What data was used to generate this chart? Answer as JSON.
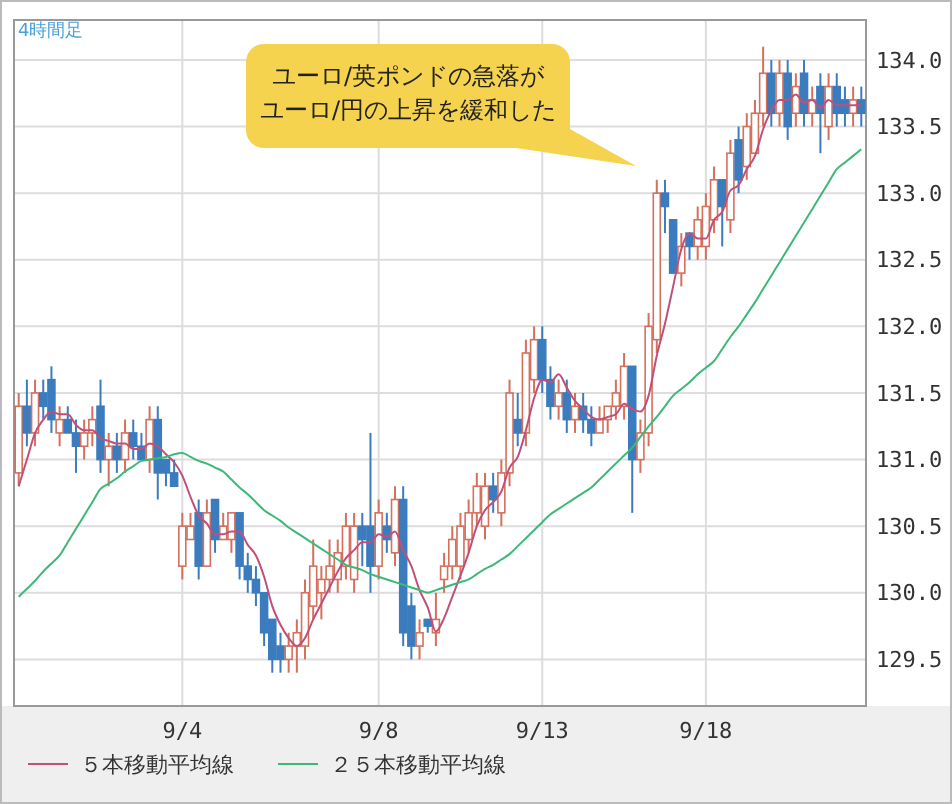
{
  "chart_data": {
    "type": "candlestick",
    "title": "4時間足",
    "categories": [
      null,
      null,
      null,
      null,
      null,
      null,
      null,
      null,
      null,
      null,
      null,
      null,
      null,
      null,
      null,
      null,
      null,
      null,
      null,
      null,
      "9/4",
      null,
      null,
      null,
      null,
      null,
      null,
      null,
      null,
      null,
      null,
      null,
      null,
      null,
      null,
      null,
      null,
      null,
      null,
      null,
      null,
      null,
      null,
      null,
      "9/8",
      null,
      null,
      null,
      null,
      null,
      null,
      null,
      null,
      null,
      null,
      null,
      null,
      null,
      null,
      null,
      null,
      null,
      null,
      null,
      "9/13",
      null,
      null,
      null,
      null,
      null,
      null,
      null,
      null,
      null,
      null,
      null,
      null,
      null,
      null,
      null,
      null,
      null,
      null,
      null,
      "9/18",
      null,
      null,
      null,
      null,
      null,
      null,
      null,
      null,
      null,
      null,
      null,
      null,
      null,
      null,
      null,
      null,
      null,
      null,
      null
    ],
    "series": [
      {
        "ohlc": [
          [
            130.9,
            131.5,
            130.8,
            131.4
          ],
          [
            131.4,
            131.6,
            131.1,
            131.2
          ],
          [
            131.2,
            131.6,
            131.1,
            131.5
          ],
          [
            131.5,
            131.6,
            131.3,
            131.4
          ],
          [
            131.6,
            131.7,
            131.2,
            131.3
          ],
          [
            131.2,
            131.4,
            131.1,
            131.3
          ],
          [
            131.3,
            131.4,
            131.2,
            131.2
          ],
          [
            131.2,
            131.3,
            130.9,
            131.1
          ],
          [
            131.1,
            131.3,
            131.0,
            131.2
          ],
          [
            131.2,
            131.4,
            131.1,
            131.3
          ],
          [
            131.4,
            131.6,
            130.9,
            131.0
          ],
          [
            131.0,
            131.2,
            130.8,
            131.1
          ],
          [
            131.1,
            131.2,
            130.9,
            131.0
          ],
          [
            131.0,
            131.3,
            130.9,
            131.2
          ],
          [
            131.2,
            131.3,
            131.0,
            131.1
          ],
          [
            131.1,
            131.2,
            131.0,
            131.0
          ],
          [
            131.0,
            131.4,
            130.9,
            131.3
          ],
          [
            131.3,
            131.4,
            130.7,
            130.9
          ],
          [
            131.0,
            131.0,
            130.8,
            130.9
          ],
          [
            130.9,
            131.0,
            130.8,
            130.8
          ],
          [
            130.2,
            130.6,
            130.1,
            130.5
          ],
          [
            130.4,
            130.6,
            130.4,
            130.5
          ],
          [
            130.6,
            130.7,
            130.1,
            130.2
          ],
          [
            130.2,
            130.7,
            130.2,
            130.6
          ],
          [
            130.7,
            130.7,
            130.3,
            130.4
          ],
          [
            130.4,
            130.6,
            130.4,
            130.5
          ],
          [
            130.4,
            130.6,
            130.3,
            130.6
          ],
          [
            130.6,
            130.6,
            130.1,
            130.2
          ],
          [
            130.2,
            130.3,
            130.0,
            130.1
          ],
          [
            130.1,
            130.2,
            129.9,
            130.0
          ],
          [
            130.0,
            130.0,
            129.6,
            129.7
          ],
          [
            129.8,
            129.8,
            129.4,
            129.5
          ],
          [
            129.6,
            129.7,
            129.4,
            129.5
          ],
          [
            129.5,
            129.7,
            129.4,
            129.6
          ],
          [
            129.6,
            129.8,
            129.4,
            129.7
          ],
          [
            129.6,
            130.1,
            129.5,
            130.0
          ],
          [
            129.9,
            130.4,
            129.8,
            130.2
          ],
          [
            130.0,
            130.2,
            129.8,
            130.1
          ],
          [
            130.1,
            130.4,
            130.0,
            130.2
          ],
          [
            130.1,
            130.4,
            130.0,
            130.3
          ],
          [
            130.2,
            130.6,
            130.1,
            130.5
          ],
          [
            130.1,
            130.6,
            130.0,
            130.5
          ],
          [
            130.5,
            130.6,
            130.2,
            130.4
          ],
          [
            130.5,
            131.2,
            130.0,
            130.2
          ],
          [
            130.2,
            130.7,
            130.1,
            130.6
          ],
          [
            130.5,
            130.6,
            130.3,
            130.4
          ],
          [
            130.3,
            130.8,
            130.2,
            130.7
          ],
          [
            130.7,
            130.8,
            129.6,
            129.7
          ],
          [
            129.9,
            130.0,
            129.5,
            129.6
          ],
          [
            129.6,
            129.8,
            129.5,
            129.7
          ],
          [
            129.8,
            129.8,
            129.7,
            129.75
          ],
          [
            129.7,
            130.0,
            129.6,
            129.8
          ],
          [
            130.1,
            130.3,
            130.0,
            130.2
          ],
          [
            130.2,
            130.5,
            130.1,
            130.4
          ],
          [
            130.2,
            130.6,
            130.1,
            130.5
          ],
          [
            130.4,
            130.7,
            130.3,
            130.6
          ],
          [
            130.6,
            130.9,
            130.5,
            130.8
          ],
          [
            130.5,
            130.9,
            130.4,
            130.8
          ],
          [
            130.8,
            130.9,
            130.6,
            130.7
          ],
          [
            130.6,
            131.0,
            130.5,
            130.9
          ],
          [
            130.9,
            131.6,
            130.8,
            131.5
          ],
          [
            131.3,
            131.5,
            131.1,
            131.2
          ],
          [
            131.2,
            131.9,
            131.1,
            131.8
          ],
          [
            131.6,
            132.0,
            131.5,
            131.9
          ],
          [
            131.9,
            132.0,
            131.5,
            131.6
          ],
          [
            131.6,
            131.7,
            131.3,
            131.4
          ],
          [
            131.4,
            131.6,
            131.3,
            131.5
          ],
          [
            131.5,
            131.6,
            131.2,
            131.3
          ],
          [
            131.3,
            131.5,
            131.2,
            131.4
          ],
          [
            131.4,
            131.5,
            131.2,
            131.3
          ],
          [
            131.3,
            131.4,
            131.1,
            131.2
          ],
          [
            131.2,
            131.4,
            131.2,
            131.3
          ],
          [
            131.3,
            131.4,
            131.2,
            131.4
          ],
          [
            131.4,
            131.6,
            131.3,
            131.5
          ],
          [
            131.4,
            131.8,
            131.3,
            131.7
          ],
          [
            131.7,
            131.7,
            130.6,
            131.0
          ],
          [
            131.0,
            131.3,
            130.9,
            131.2
          ],
          [
            131.2,
            132.1,
            131.1,
            132.0
          ],
          [
            131.9,
            133.1,
            131.8,
            133.0
          ],
          [
            133.0,
            133.1,
            132.7,
            132.9
          ],
          [
            132.8,
            132.8,
            132.4,
            132.4
          ],
          [
            132.4,
            132.7,
            132.3,
            132.6
          ],
          [
            132.7,
            132.7,
            132.5,
            132.6
          ],
          [
            132.6,
            132.9,
            132.5,
            132.8
          ],
          [
            132.6,
            133.0,
            132.5,
            132.9
          ],
          [
            132.8,
            133.2,
            132.7,
            133.1
          ],
          [
            133.1,
            133.1,
            132.6,
            132.9
          ],
          [
            132.8,
            133.4,
            132.7,
            133.3
          ],
          [
            133.4,
            133.5,
            133.0,
            133.1
          ],
          [
            133.2,
            133.6,
            133.1,
            133.5
          ],
          [
            133.3,
            133.7,
            133.3,
            133.6
          ],
          [
            133.6,
            134.1,
            133.5,
            133.9
          ],
          [
            133.9,
            134.0,
            133.5,
            133.6
          ],
          [
            133.6,
            134.0,
            133.5,
            133.9
          ],
          [
            133.9,
            134.0,
            133.4,
            133.5
          ],
          [
            133.6,
            133.9,
            133.5,
            133.8
          ],
          [
            133.9,
            134.0,
            133.5,
            133.6
          ],
          [
            133.6,
            133.8,
            133.5,
            133.7
          ],
          [
            133.8,
            133.9,
            133.3,
            133.6
          ],
          [
            133.5,
            133.9,
            133.4,
            133.8
          ],
          [
            133.8,
            133.9,
            133.5,
            133.6
          ],
          [
            133.7,
            133.8,
            133.5,
            133.6
          ],
          [
            133.6,
            133.8,
            133.5,
            133.7
          ],
          [
            133.7,
            133.8,
            133.5,
            133.6
          ]
        ],
        "colors": [
          "#d4705c",
          "#3b7cbf",
          "#d4705c",
          "#3b7cbf",
          "#3b7cbf",
          "#d4705c",
          "#3b7cbf",
          "#3b7cbf",
          "#d4705c",
          "#d4705c",
          "#3b7cbf",
          "#d4705c",
          "#3b7cbf",
          "#d4705c",
          "#3b7cbf",
          "#3b7cbf",
          "#d4705c",
          "#3b7cbf",
          "#3b7cbf",
          "#3b7cbf",
          "#d4705c",
          "#d4705c",
          "#3b7cbf",
          "#d4705c",
          "#3b7cbf",
          "#d4705c",
          "#d4705c",
          "#3b7cbf",
          "#3b7cbf",
          "#3b7cbf",
          "#3b7cbf",
          "#3b7cbf",
          "#3b7cbf",
          "#d4705c",
          "#d4705c",
          "#d4705c",
          "#d4705c",
          "#d4705c",
          "#d4705c",
          "#d4705c",
          "#d4705c",
          "#d4705c",
          "#3b7cbf",
          "#3b7cbf",
          "#d4705c",
          "#3b7cbf",
          "#d4705c",
          "#3b7cbf",
          "#3b7cbf",
          "#d4705c",
          "#3b7cbf",
          "#d4705c",
          "#d4705c",
          "#d4705c",
          "#d4705c",
          "#d4705c",
          "#d4705c",
          "#d4705c",
          "#3b7cbf",
          "#d4705c",
          "#d4705c",
          "#3b7cbf",
          "#d4705c",
          "#d4705c",
          "#3b7cbf",
          "#3b7cbf",
          "#d4705c",
          "#3b7cbf",
          "#d4705c",
          "#3b7cbf",
          "#3b7cbf",
          "#d4705c",
          "#d4705c",
          "#d4705c",
          "#d4705c",
          "#3b7cbf",
          "#d4705c",
          "#d4705c",
          "#d4705c",
          "#3b7cbf",
          "#3b7cbf",
          "#d4705c",
          "#3b7cbf",
          "#d4705c",
          "#d4705c",
          "#d4705c",
          "#3b7cbf",
          "#d4705c",
          "#3b7cbf",
          "#d4705c",
          "#d4705c",
          "#d4705c",
          "#3b7cbf",
          "#d4705c",
          "#3b7cbf",
          "#d4705c",
          "#3b7cbf",
          "#d4705c",
          "#3b7cbf",
          "#d4705c",
          "#3b7cbf",
          "#3b7cbf",
          "#d4705c",
          "#3b7cbf"
        ]
      },
      {
        "type": "line",
        "name": "５本移動平均線",
        "color": "#c0507a",
        "values": [
          130.8,
          131.0,
          131.2,
          131.3,
          131.36,
          131.34,
          131.34,
          131.26,
          131.22,
          131.22,
          131.16,
          131.14,
          131.12,
          131.12,
          131.08,
          131.08,
          131.12,
          131.1,
          131.04,
          130.98,
          130.88,
          130.72,
          130.58,
          130.52,
          130.44,
          130.44,
          130.46,
          130.46,
          130.36,
          130.28,
          130.12,
          129.9,
          129.76,
          129.66,
          129.6,
          129.66,
          129.8,
          129.92,
          130.04,
          130.16,
          130.26,
          130.32,
          130.38,
          130.38,
          130.44,
          130.42,
          130.46,
          130.32,
          130.2,
          130.02,
          129.89,
          129.71,
          129.81,
          129.97,
          130.13,
          130.3,
          130.5,
          130.62,
          130.68,
          130.76,
          130.94,
          131.02,
          131.22,
          131.46,
          131.6,
          131.58,
          131.64,
          131.54,
          131.44,
          131.38,
          131.32,
          131.3,
          131.32,
          131.34,
          131.42,
          131.38,
          131.36,
          131.48,
          131.78,
          132.02,
          132.3,
          132.58,
          132.7,
          132.66,
          132.66,
          132.8,
          132.86,
          133.02,
          133.06,
          133.18,
          133.28,
          133.48,
          133.62,
          133.7,
          133.7,
          133.74,
          133.68,
          133.7,
          133.64,
          133.7,
          133.66,
          133.66,
          133.66,
          133.66
        ]
      },
      {
        "type": "line",
        "name": "２５本移動平均線",
        "color": "#3cb878",
        "values": [
          129.97,
          130.03,
          130.09,
          130.16,
          130.22,
          130.28,
          130.38,
          130.48,
          130.58,
          130.68,
          130.78,
          130.82,
          130.86,
          130.91,
          130.95,
          130.99,
          131.0,
          131.01,
          131.02,
          131.04,
          131.05,
          131.02,
          130.99,
          130.97,
          130.94,
          130.91,
          130.85,
          130.79,
          130.74,
          130.68,
          130.62,
          130.58,
          130.54,
          130.49,
          130.45,
          130.41,
          130.37,
          130.33,
          130.29,
          130.25,
          130.21,
          130.19,
          130.17,
          130.14,
          130.12,
          130.1,
          130.08,
          130.06,
          130.04,
          130.02,
          130.0,
          130.02,
          130.04,
          130.06,
          130.08,
          130.1,
          130.14,
          130.18,
          130.21,
          130.25,
          130.29,
          130.35,
          130.41,
          130.47,
          130.53,
          130.59,
          130.63,
          130.67,
          130.71,
          130.75,
          130.79,
          130.85,
          130.91,
          130.97,
          131.03,
          131.09,
          131.17,
          131.25,
          131.32,
          131.4,
          131.48,
          131.53,
          131.58,
          131.64,
          131.69,
          131.74,
          131.83,
          131.92,
          132.0,
          132.09,
          132.18,
          132.28,
          132.38,
          132.48,
          132.58,
          132.68,
          132.78,
          132.88,
          132.98,
          133.08,
          133.18,
          133.23,
          133.28,
          133.33
        ]
      }
    ],
    "ylim": [
      129.15,
      134.3
    ],
    "yticks": [
      129.5,
      {
        "value": 130,
        "label": "130.0"
      },
      130.5,
      {
        "value": 131,
        "label": "131.0"
      },
      131.5,
      {
        "value": 132,
        "label": "132.0"
      },
      132.5,
      {
        "value": 133,
        "label": "133.0"
      },
      133.5,
      {
        "value": 134,
        "label": "134.0"
      }
    ],
    "grid": true,
    "legend": "bottom left",
    "annotations": [
      "ユーロ/英ポンドの急落が",
      "ユーロ/円の上昇を緩和した"
    ]
  }
}
